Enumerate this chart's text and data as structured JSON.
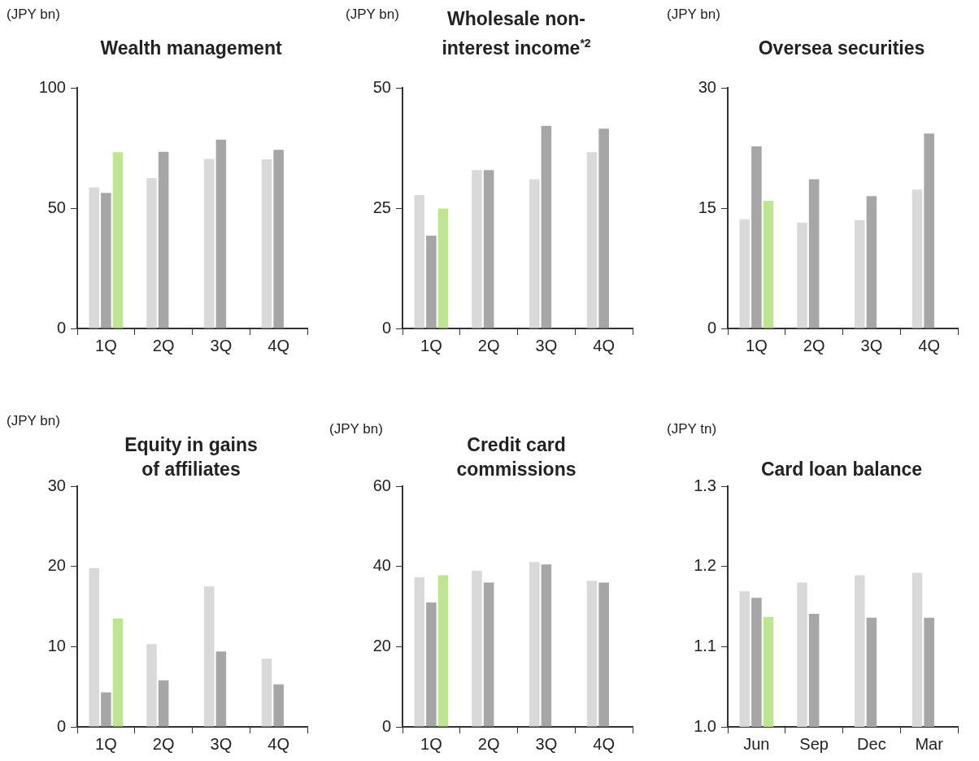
{
  "chart_data": [
    {
      "type": "bar",
      "title": "Wealth management",
      "ylabel": "(JPY bn)",
      "categories": [
        "1Q",
        "2Q",
        "3Q",
        "4Q"
      ],
      "ylim": [
        0,
        100
      ],
      "yticks": [
        0,
        50,
        100
      ],
      "grid": false,
      "series": [
        {
          "color": "#d9d9d9",
          "values": [
            58.6,
            62.5,
            70.4,
            70.3
          ]
        },
        {
          "color": "#a6a6a6",
          "values": [
            56.3,
            73.4,
            78.5,
            74.2
          ]
        },
        {
          "color": "#bfe591",
          "values": [
            73.2,
            null,
            null,
            null
          ]
        }
      ]
    },
    {
      "type": "bar",
      "title": "Wholesale non-interest income$^{*2}$",
      "ylabel": "(JPY bn)",
      "categories": [
        "1Q",
        "2Q",
        "3Q",
        "4Q"
      ],
      "ylim": [
        0,
        50
      ],
      "yticks": [
        0,
        25,
        50
      ],
      "grid": false,
      "series": [
        {
          "color": "#d9d9d9",
          "values": [
            27.7,
            32.9,
            31.0,
            36.6
          ]
        },
        {
          "color": "#a6a6a6",
          "values": [
            19.3,
            32.9,
            42.1,
            41.5
          ]
        },
        {
          "color": "#bfe591",
          "values": [
            24.9,
            null,
            null,
            null
          ]
        }
      ]
    },
    {
      "type": "bar",
      "title": "Oversea securities",
      "ylabel": "(JPY bn)",
      "categories": [
        "1Q",
        "2Q",
        "3Q",
        "4Q"
      ],
      "ylim": [
        0,
        30
      ],
      "yticks": [
        0,
        15,
        30
      ],
      "grid": false,
      "series": [
        {
          "color": "#d9d9d9",
          "values": [
            13.6,
            13.2,
            13.5,
            17.3
          ]
        },
        {
          "color": "#a6a6a6",
          "values": [
            22.7,
            18.6,
            16.5,
            24.3
          ]
        },
        {
          "color": "#bfe591",
          "values": [
            15.9,
            null,
            null,
            null
          ]
        }
      ]
    },
    {
      "type": "bar",
      "title": "Equity in gains of affiliates",
      "ylabel": "(JPY bn)",
      "categories": [
        "1Q",
        "2Q",
        "3Q",
        "4Q"
      ],
      "ylim": [
        0,
        30
      ],
      "yticks": [
        0,
        10,
        20,
        30
      ],
      "grid": false,
      "series": [
        {
          "color": "#d9d9d9",
          "values": [
            19.8,
            10.3,
            17.5,
            8.5
          ]
        },
        {
          "color": "#a6a6a6",
          "values": [
            4.3,
            5.8,
            9.4,
            5.3
          ]
        },
        {
          "color": "#bfe591",
          "values": [
            13.5,
            null,
            null,
            null
          ]
        }
      ]
    },
    {
      "type": "bar",
      "title": "Credit card commissions",
      "ylabel": "(JPY bn)",
      "categories": [
        "1Q",
        "2Q",
        "3Q",
        "4Q"
      ],
      "ylim": [
        0,
        60
      ],
      "yticks": [
        0,
        20,
        40,
        60
      ],
      "grid": false,
      "series": [
        {
          "color": "#d9d9d9",
          "values": [
            37.3,
            38.9,
            41.1,
            36.4
          ]
        },
        {
          "color": "#a6a6a6",
          "values": [
            31.0,
            36.0,
            40.5,
            36.0
          ]
        },
        {
          "color": "#bfe591",
          "values": [
            37.8,
            null,
            null,
            null
          ]
        }
      ]
    },
    {
      "type": "bar",
      "title": "Card loan balance",
      "ylabel": "(JPY tn)",
      "categories": [
        "Jun",
        "Sep",
        "Dec",
        "Mar"
      ],
      "ylim": [
        1.0,
        1.3
      ],
      "yticks": [
        {
          "value": 1.0,
          "label": "1.0"
        },
        {
          "value": 1.1,
          "label": "1.1"
        },
        {
          "value": 1.2,
          "label": "1.2"
        },
        {
          "value": 1.3,
          "label": "1.3"
        }
      ],
      "grid": false,
      "series": [
        {
          "color": "#d9d9d9",
          "values": [
            1.169,
            1.18,
            1.189,
            1.192
          ]
        },
        {
          "color": "#a6a6a6",
          "values": [
            1.161,
            1.141,
            1.136,
            1.136
          ]
        },
        {
          "color": "#bfe591",
          "values": [
            1.137,
            null,
            null,
            null
          ]
        }
      ]
    }
  ]
}
